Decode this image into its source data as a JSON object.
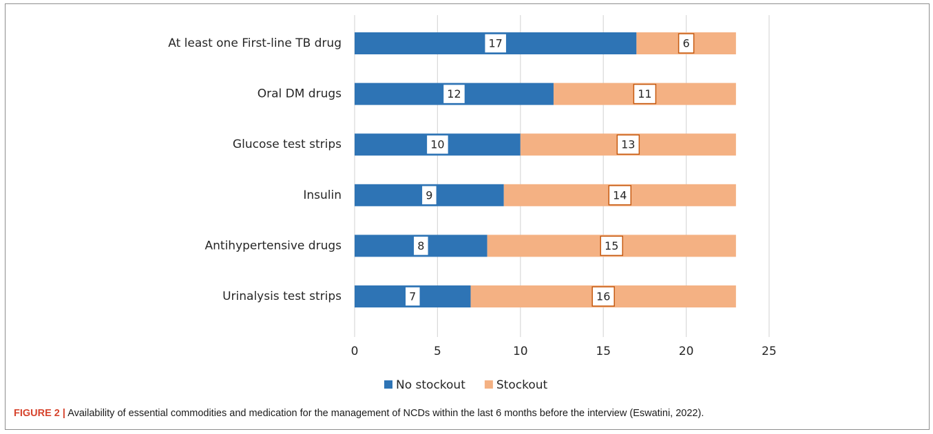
{
  "chart_data": {
    "type": "bar",
    "orientation": "horizontal",
    "stacked": true,
    "categories": [
      "At least one First-line TB drug",
      "Oral DM drugs",
      "Glucose test strips",
      "Insulin",
      "Antihypertensive drugs",
      "Urinalysis test strips"
    ],
    "series": [
      {
        "name": "No stockout",
        "color": "#2e74b5",
        "label_border": "#2e74b5",
        "values": [
          17,
          12,
          10,
          9,
          8,
          7
        ]
      },
      {
        "name": "Stockout",
        "color": "#f4b183",
        "label_border": "#c55a11",
        "values": [
          6,
          11,
          13,
          14,
          15,
          16
        ]
      }
    ],
    "xlim": [
      0,
      25
    ],
    "xticks": [
      0,
      5,
      10,
      15,
      20,
      25
    ],
    "grid": "vertical",
    "legend_position": "bottom",
    "title": "",
    "xlabel": "",
    "ylabel": ""
  },
  "caption": {
    "label": "FIGURE 2 |",
    "text": " Availability of essential commodities and medication for the management of NCDs within the last 6 months before the interview (Eswatini, 2022)."
  }
}
